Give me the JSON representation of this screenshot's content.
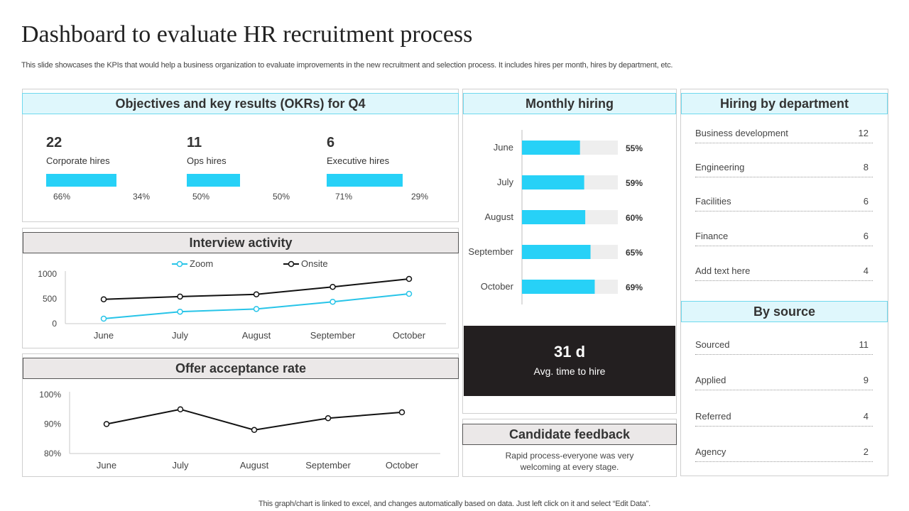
{
  "page": {
    "title": "Dashboard to evaluate HR recruitment process",
    "subtitle": "This slide showcases the KPIs that would help a business organization to evaluate improvements in the new recruitment and selection process. It includes hires per month, hires by department, etc.",
    "footer": "This graph/chart is linked to excel, and changes automatically based on data. Just left click on it and select “Edit Data”."
  },
  "okr": {
    "header": "Objectives and key results (OKRs) for Q4",
    "items": [
      {
        "value": "22",
        "label": "Corporate  hires",
        "left_pct": "66%",
        "right_pct": "34%",
        "fill": 0.66
      },
      {
        "value": "11",
        "label": "Ops hires",
        "left_pct": "50%",
        "right_pct": "50%",
        "fill": 0.5
      },
      {
        "value": "6",
        "label": "Executive hires",
        "left_pct": "71%",
        "right_pct": "29%",
        "fill": 0.71
      }
    ]
  },
  "monthly_hiring": {
    "header": "Monthly hiring",
    "kpi_value": "31 d",
    "kpi_label": "Avg. time to hire"
  },
  "interview": {
    "header": "Interview activity"
  },
  "offer": {
    "header": "Offer acceptance rate"
  },
  "department": {
    "header": "Hiring by department",
    "items": [
      {
        "label": "Business development",
        "value": "12"
      },
      {
        "label": "Engineering",
        "value": "8"
      },
      {
        "label": "Facilities",
        "value": "6"
      },
      {
        "label": "Finance",
        "value": "6"
      },
      {
        "label": "Add text here",
        "value": "4"
      }
    ]
  },
  "source": {
    "header": "By source",
    "items": [
      {
        "label": "Sourced",
        "value": "11"
      },
      {
        "label": "Applied",
        "value": "9"
      },
      {
        "label": "Referred",
        "value": "4"
      },
      {
        "label": "Agency",
        "value": "2"
      }
    ]
  },
  "feedback": {
    "header": "Candidate feedback",
    "text_line1": "Rapid process-everyone  was very",
    "text_line2": "welcoming at every stage."
  },
  "chart_data": [
    {
      "type": "bar",
      "orientation": "horizontal",
      "categories": [
        "June",
        "July",
        "August",
        "September",
        "October"
      ],
      "values": [
        55,
        59,
        60,
        65,
        69
      ],
      "value_labels": [
        "55%",
        "59%",
        "60%",
        "65%",
        "69%"
      ],
      "xlim": [
        0,
        100
      ],
      "colors": {
        "bar": "#27d1f7",
        "track": "#eeeeee"
      }
    },
    {
      "type": "line",
      "categories": [
        "June",
        "July",
        "August",
        "September",
        "October"
      ],
      "series": [
        {
          "name": "Zoom",
          "values": [
            100,
            240,
            295,
            440,
            600
          ],
          "color": "#27c4e8"
        },
        {
          "name": "Onsite",
          "values": [
            490,
            545,
            590,
            740,
            900
          ],
          "color": "#111111"
        }
      ],
      "ylim": [
        0,
        1000
      ],
      "yticks": [
        "0",
        "500",
        "1000"
      ],
      "legend": "top"
    },
    {
      "type": "line",
      "categories": [
        "June",
        "July",
        "August",
        "September",
        "October"
      ],
      "series": [
        {
          "values": [
            90,
            95,
            88,
            92,
            94
          ],
          "color": "#111111"
        }
      ],
      "ylim": [
        80,
        100
      ],
      "yticks": [
        "80%",
        "90%",
        "100%"
      ]
    }
  ]
}
